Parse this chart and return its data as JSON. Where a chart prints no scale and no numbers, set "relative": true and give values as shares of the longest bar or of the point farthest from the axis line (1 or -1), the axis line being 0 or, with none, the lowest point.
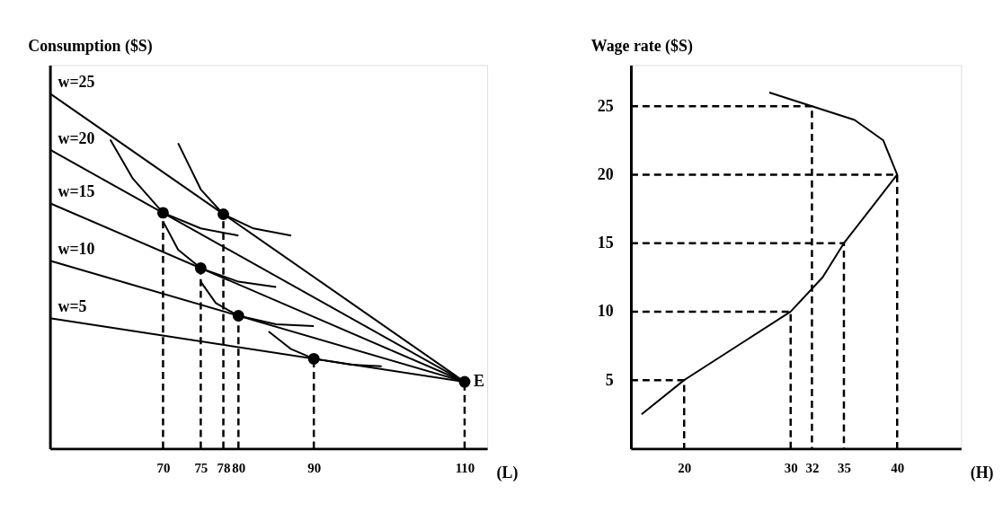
{
  "chart_data": [
    {
      "type": "line",
      "relative": true,
      "ylabel": "Consumption ($S)",
      "xlabel": "(L)",
      "xlim": [
        55,
        113
      ],
      "xticks": [
        70,
        75,
        78,
        80,
        90,
        110
      ],
      "grid": false,
      "series": [
        {
          "name": "w=25",
          "color": "#000000",
          "x": [
            55,
            110
          ],
          "values": [
            1,
            0.188
          ]
        },
        {
          "name": "w=20",
          "color": "#000000",
          "x": [
            55,
            110
          ],
          "values": [
            0.842,
            0.188
          ]
        },
        {
          "name": "w=15",
          "color": "#000000",
          "x": [
            55,
            110
          ],
          "values": [
            0.691,
            0.188
          ]
        },
        {
          "name": "w=10",
          "color": "#000000",
          "x": [
            55,
            110
          ],
          "values": [
            0.529,
            0.188
          ]
        },
        {
          "name": "w=5",
          "color": "#000000",
          "x": [
            55,
            110
          ],
          "values": [
            0.367,
            0.188
          ]
        },
        {
          "color": "#000000",
          "x": [
            72,
            75,
            78,
            82,
            87
          ],
          "values": [
            0.86,
            0.73,
            0.66,
            0.62,
            0.6
          ]
        },
        {
          "color": "#000000",
          "x": [
            63,
            66,
            70,
            75,
            80
          ],
          "values": [
            0.87,
            0.76,
            0.664,
            0.62,
            0.6
          ]
        },
        {
          "color": "#000000",
          "x": [
            70,
            72,
            75,
            80,
            85
          ],
          "values": [
            0.64,
            0.56,
            0.508,
            0.47,
            0.455
          ]
        },
        {
          "color": "#000000",
          "x": [
            75,
            77,
            80,
            85,
            90
          ],
          "values": [
            0.47,
            0.41,
            0.374,
            0.35,
            0.345
          ]
        },
        {
          "color": "#000000",
          "x": [
            84,
            87,
            90,
            95,
            99
          ],
          "values": [
            0.33,
            0.28,
            0.253,
            0.236,
            0.232
          ]
        },
        {
          "color": "#000000",
          "line_style": "dashed",
          "x": [
            70,
            70
          ],
          "values": [
            0,
            0.664
          ]
        },
        {
          "color": "#000000",
          "line_style": "dashed",
          "x": [
            75,
            75
          ],
          "values": [
            0,
            0.508
          ]
        },
        {
          "color": "#000000",
          "line_style": "dashed",
          "x": [
            78,
            78
          ],
          "values": [
            0,
            0.66
          ]
        },
        {
          "color": "#000000",
          "line_style": "dashed",
          "x": [
            80,
            80
          ],
          "values": [
            0,
            0.374
          ]
        },
        {
          "color": "#000000",
          "line_style": "dashed",
          "x": [
            90,
            90
          ],
          "values": [
            0,
            0.253
          ]
        },
        {
          "color": "#000000",
          "line_style": "dashed",
          "x": [
            110,
            110
          ],
          "values": [
            0,
            0.188
          ]
        },
        {
          "type": "scatter",
          "marker": "circle",
          "color": "#000000",
          "x": [
            70,
            75,
            78,
            80,
            90,
            110
          ],
          "values": [
            0.664,
            0.508,
            0.66,
            0.374,
            0.253,
            0.188
          ]
        }
      ],
      "annotations": [
        {
          "text": "E",
          "x": 110,
          "y": 0.188
        }
      ]
    },
    {
      "type": "line",
      "ylabel": "Wage rate ($S)",
      "xlabel": "(H)",
      "xlim": [
        15,
        46
      ],
      "ylim": [
        0,
        28
      ],
      "xticks": [
        20,
        30,
        32,
        35,
        40
      ],
      "yticks": [
        5,
        10,
        15,
        20,
        25
      ],
      "grid": false,
      "series": [
        {
          "color": "#000000",
          "x": [
            16,
            20,
            25,
            30,
            33,
            35,
            37.5,
            40,
            38.7,
            36,
            32,
            28
          ],
          "values": [
            2.5,
            5,
            7.5,
            10,
            12.5,
            15,
            17.5,
            20,
            22.5,
            24,
            25,
            26
          ]
        },
        {
          "color": "#000000",
          "line_style": "dashed",
          "x": [
            15,
            20,
            20
          ],
          "values": [
            5,
            5,
            0
          ]
        },
        {
          "color": "#000000",
          "line_style": "dashed",
          "x": [
            15,
            30,
            30
          ],
          "values": [
            10,
            10,
            0
          ]
        },
        {
          "color": "#000000",
          "line_style": "dashed",
          "x": [
            15,
            35,
            35
          ],
          "values": [
            15,
            15,
            0
          ]
        },
        {
          "color": "#000000",
          "line_style": "dashed",
          "x": [
            15,
            40,
            40
          ],
          "values": [
            20,
            20,
            0
          ]
        },
        {
          "color": "#000000",
          "line_style": "dashed",
          "x": [
            15,
            32,
            32
          ],
          "values": [
            25,
            25,
            0
          ]
        }
      ]
    }
  ]
}
